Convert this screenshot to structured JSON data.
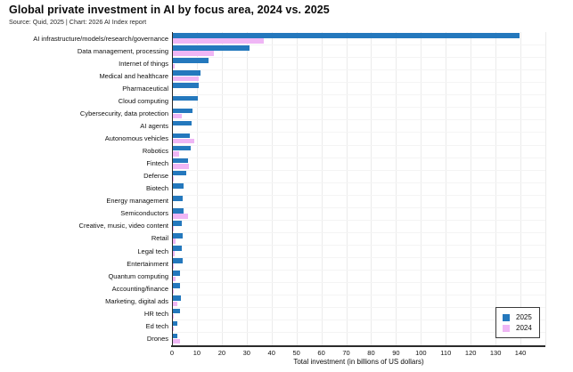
{
  "header": {
    "title": "Global private investment in AI by focus area, 2024 vs. 2025",
    "source": "Source: Quid, 2025 | Chart: 2026 AI Index report"
  },
  "chart_data": {
    "type": "bar",
    "orientation": "horizontal",
    "title": "Global private investment in AI by focus area, 2024 vs. 2025",
    "source_note": "Source: Quid, 2025 | Chart: 2026 AI Index report",
    "categories": [
      "AI infrastructure/models/research/governance",
      "Data management, processing",
      "Internet of things",
      "Medical and healthcare",
      "Pharmaceutical",
      "Cloud computing",
      "Cybersecurity, data protection",
      "AI agents",
      "Autonomous vehicles",
      "Robotics",
      "Fintech",
      "Defense",
      "Biotech",
      "Energy management",
      "Semiconductors",
      "Creative, music, video content",
      "Retail",
      "Legal tech",
      "Entertainment",
      "Quantum computing",
      "Accounting/finance",
      "Marketing, digital ads",
      "HR tech",
      "Ed tech",
      "Drones"
    ],
    "series": [
      {
        "name": "2025",
        "color": "#2478bd",
        "values": [
          139.5,
          31.0,
          14.5,
          11.6,
          10.7,
          10.4,
          8.3,
          8.0,
          7.3,
          7.6,
          6.4,
          5.7,
          4.6,
          4.3,
          4.5,
          3.9,
          4.3,
          4.0,
          4.3,
          3.3,
          3.3,
          3.7,
          3.3,
          2.3,
          2.1
        ]
      },
      {
        "name": "2024",
        "color": "#efb6f5",
        "values": [
          37.0,
          17.0,
          1.0,
          10.8,
          0.4,
          0.5,
          3.9,
          0.3,
          9.0,
          2.9,
          6.7,
          0.7,
          0.4,
          0.5,
          6.4,
          0.6,
          1.3,
          1.1,
          0.8,
          1.3,
          0.6,
          2.1,
          0.7,
          0.8,
          3.1
        ]
      }
    ],
    "xlabel": "Total investment (in billions of US dollars)",
    "xlim": [
      0,
      150
    ],
    "xticks": [
      0,
      10,
      20,
      30,
      40,
      50,
      60,
      70,
      80,
      90,
      100,
      110,
      120,
      130,
      140
    ],
    "grid": true,
    "legend_position": "lower-right",
    "unit": "billions of US dollars"
  },
  "legend": {
    "items": [
      {
        "label": "2025",
        "color": "#2478bd"
      },
      {
        "label": "2024",
        "color": "#efb6f5"
      }
    ]
  },
  "colors": {
    "axis": "#2b2b2b",
    "grid": "#ebebeb",
    "background": "#ffffff",
    "text": "#111111"
  }
}
